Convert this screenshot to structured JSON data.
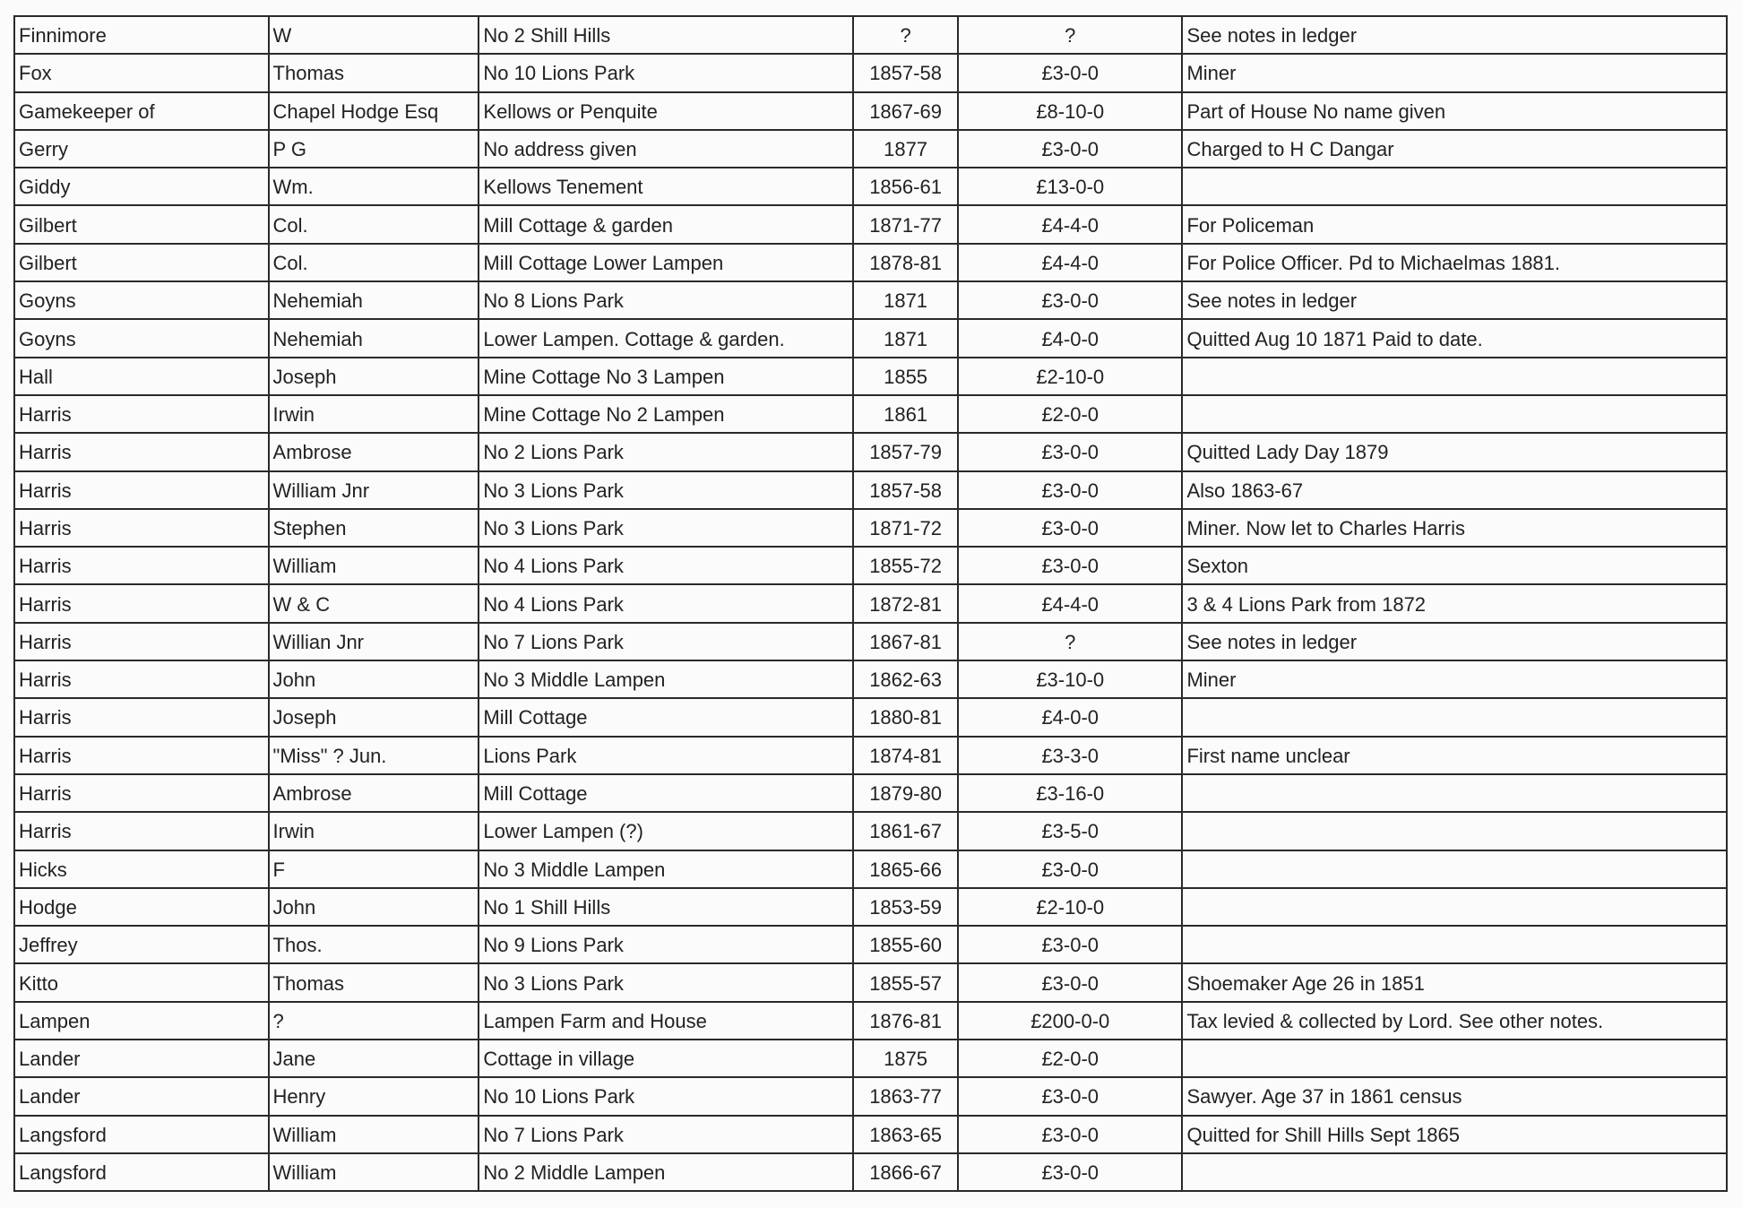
{
  "rows": [
    [
      "Finnimore",
      "W",
      "No 2 Shill Hills",
      "?",
      "?",
      "See notes in ledger"
    ],
    [
      "Fox",
      "Thomas",
      "No 10 Lions Park",
      "1857-58",
      "£3-0-0",
      "Miner"
    ],
    [
      "Gamekeeper of",
      "Chapel Hodge Esq",
      "Kellows or Penquite",
      "1867-69",
      "£8-10-0",
      "Part of House  No name given"
    ],
    [
      "Gerry",
      "P G",
      "No address given",
      "1877",
      "£3-0-0",
      "Charged to H C Dangar"
    ],
    [
      "Giddy",
      "Wm.",
      "Kellows Tenement",
      "1856-61",
      "£13-0-0",
      ""
    ],
    [
      "Gilbert",
      "Col.",
      "Mill Cottage & garden",
      "1871-77",
      "£4-4-0",
      "For Policeman"
    ],
    [
      "Gilbert",
      "Col.",
      "Mill Cottage Lower Lampen",
      "1878-81",
      "£4-4-0",
      "For Police Officer. Pd to Michaelmas 1881."
    ],
    [
      "Goyns",
      "Nehemiah",
      "No 8 Lions Park",
      "1871",
      "£3-0-0",
      "See notes in ledger"
    ],
    [
      "Goyns",
      "Nehemiah",
      "Lower Lampen. Cottage & garden.",
      "1871",
      "£4-0-0",
      "Quitted Aug 10 1871 Paid to date."
    ],
    [
      "Hall",
      "Joseph",
      "Mine Cottage No  3 Lampen",
      "1855",
      "£2-10-0",
      ""
    ],
    [
      "Harris",
      "Irwin",
      "Mine Cottage No  2 Lampen",
      "1861",
      "£2-0-0",
      ""
    ],
    [
      "Harris",
      "Ambrose",
      "No 2 Lions Park",
      "1857-79",
      "£3-0-0",
      "Quitted Lady Day 1879"
    ],
    [
      "Harris",
      "William Jnr",
      "No 3 Lions Park",
      "1857-58",
      "£3-0-0",
      "Also 1863-67"
    ],
    [
      "Harris",
      "Stephen",
      "No 3 Lions Park",
      "1871-72",
      "£3-0-0",
      "Miner. Now let to Charles Harris"
    ],
    [
      "Harris",
      "William",
      "No 4 Lions Park",
      "1855-72",
      "£3-0-0",
      "Sexton"
    ],
    [
      "Harris",
      "W & C",
      "No 4 Lions Park",
      "1872-81",
      "£4-4-0",
      "3 & 4 Lions Park from 1872"
    ],
    [
      "Harris",
      "Willian Jnr",
      "No 7 Lions Park",
      "1867-81",
      "?",
      "See notes in ledger"
    ],
    [
      "Harris",
      "John",
      "No 3 Middle Lampen",
      "1862-63",
      "£3-10-0",
      "Miner"
    ],
    [
      "Harris",
      "Joseph",
      "Mill Cottage",
      "1880-81",
      "£4-0-0",
      ""
    ],
    [
      "Harris",
      "\"Miss\" ? Jun.",
      "Lions Park",
      "1874-81",
      "£3-3-0",
      "First name unclear"
    ],
    [
      "Harris",
      "Ambrose",
      "Mill Cottage",
      "1879-80",
      "£3-16-0",
      ""
    ],
    [
      "Harris",
      "Irwin",
      "Lower Lampen (?)",
      "1861-67",
      "£3-5-0",
      ""
    ],
    [
      "Hicks",
      "F",
      "No 3 Middle Lampen",
      "1865-66",
      "£3-0-0",
      ""
    ],
    [
      "Hodge",
      "John",
      "No 1 Shill Hills",
      "1853-59",
      "£2-10-0",
      ""
    ],
    [
      "Jeffrey",
      "Thos.",
      "No 9 Lions Park",
      "1855-60",
      "£3-0-0",
      ""
    ],
    [
      "Kitto",
      "Thomas",
      "No 3 Lions Park",
      "1855-57",
      "£3-0-0",
      "Shoemaker Age 26 in 1851"
    ],
    [
      "Lampen",
      "?",
      "Lampen Farm and House",
      "1876-81",
      "£200-0-0",
      "Tax levied & collected by Lord. See other notes."
    ],
    [
      "Lander",
      "Jane",
      "Cottage in village",
      "1875",
      "£2-0-0",
      ""
    ],
    [
      "Lander",
      "Henry",
      "No 10 Lions Park",
      "1863-77",
      "£3-0-0",
      "Sawyer. Age 37 in 1861 census"
    ],
    [
      "Langsford",
      "William",
      "No 7 Lions Park",
      "1863-65",
      "£3-0-0",
      "Quitted for Shill Hills Sept 1865"
    ],
    [
      "Langsford",
      "William",
      "No 2 Middle Lampen",
      "1866-67",
      "£3-0-0",
      ""
    ]
  ]
}
